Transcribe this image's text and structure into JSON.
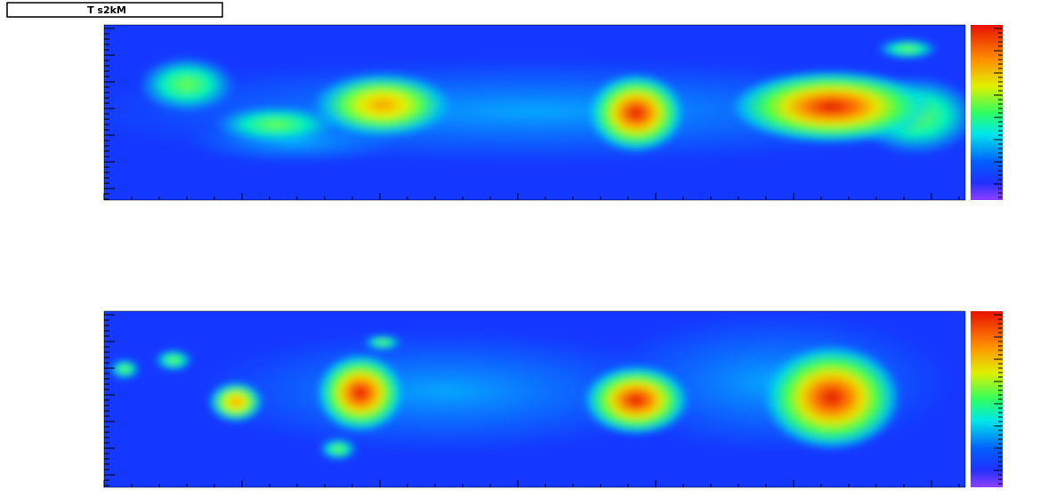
{
  "title": "T   s2kM"
}
